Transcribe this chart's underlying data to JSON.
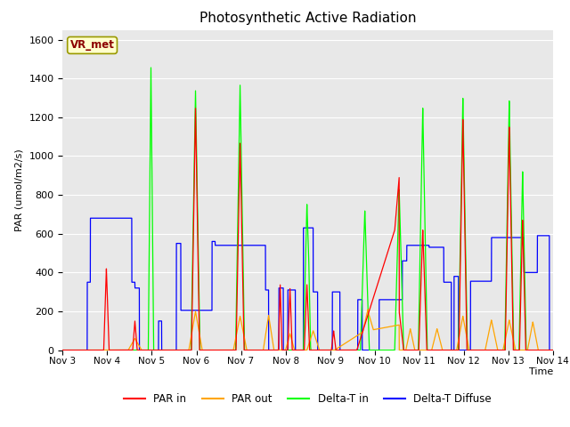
{
  "title": "Photosynthetic Active Radiation",
  "ylabel": "PAR (umol/m2/s)",
  "xlabel": "Time",
  "legend_label": "VR_met",
  "series_labels": [
    "PAR in",
    "PAR out",
    "Delta-T in",
    "Delta-T Diffuse"
  ],
  "series_colors": [
    "red",
    "orange",
    "lime",
    "blue"
  ],
  "background_color": "#e8e8e8",
  "ylim": [
    0,
    1650
  ],
  "yticks": [
    0,
    200,
    400,
    600,
    800,
    1000,
    1200,
    1400,
    1600
  ]
}
